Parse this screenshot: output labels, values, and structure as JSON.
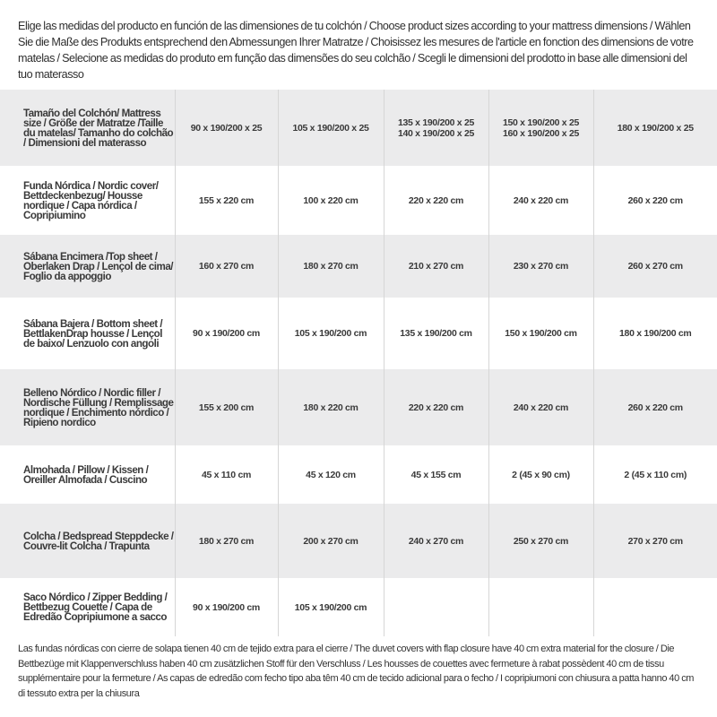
{
  "intro": "Elige las medidas del producto en función de las dimensiones de tu colchón / Choose product sizes according to your mattress dimensions / Wählen Sie die Maße des Produkts entsprechend den Abmessungen Ihrer Matratze / Choisissez les mesures de l'article en fonction des dimensions de votre matelas / Selecione as medidas do produto em função das dimensões do seu colchão / Scegli le dimensioni del prodotto in base alle dimensioni del tuo materasso",
  "table": {
    "rows": [
      {
        "label": "Tamaño del Colchón/ Mattress size / Größe der Matratze /Taille du matelas/ Tamanho do colchão / Dimensioni del materasso",
        "cells": [
          "90 x 190/200 x 25",
          "105 x 190/200 x 25",
          "135 x 190/200 x 25\n140 x 190/200 x 25",
          "150 x 190/200 x 25\n160 x 190/200 x 25",
          "180 x 190/200 x 25"
        ]
      },
      {
        "label": "Funda Nórdica / Nordic cover/ Bettdeckenbezug/ Housse nordique / Capa nórdica / Copripiumino",
        "cells": [
          "155 x 220 cm",
          "100 x 220 cm",
          "220 x 220 cm",
          "240 x 220 cm",
          "260 x 220 cm"
        ]
      },
      {
        "label": "Sábana Encimera /Top sheet / Oberlaken Drap / Lençol de cima/ Foglio da appoggio",
        "cells": [
          "160 x 270 cm",
          "180 x 270 cm",
          "210 x 270 cm",
          "230 x 270 cm",
          "260 x 270 cm"
        ]
      },
      {
        "label": "Sábana Bajera / Bottom sheet / BettlakenDrap housse / Lençol de baixo/ Lenzuolo con angoli",
        "cells": [
          "90 x 190/200 cm",
          "105 x 190/200 cm",
          "135 x 190/200 cm",
          "150 x 190/200 cm",
          "180 x 190/200 cm"
        ]
      },
      {
        "label": "Belleno Nórdico / Nordic filler / Nordische Füllung / Remplissage nordique / Enchimento nórdico / Ripieno nordico",
        "cells": [
          "155 x 200 cm",
          "180 x 220 cm",
          "220 x 220 cm",
          "240 x 220 cm",
          "260 x 220 cm"
        ]
      },
      {
        "label": "Almohada / Pillow / Kissen / Oreiller Almofada / Cuscino",
        "cells": [
          "45 x 110 cm",
          "45 x 120 cm",
          "45 x 155 cm",
          "2 (45 x 90 cm)",
          "2 (45 x 110 cm)"
        ]
      },
      {
        "label": "Colcha / Bedspread Steppdecke / Couvre-lit Colcha / Trapunta",
        "cells": [
          "180 x 270 cm",
          "200 x 270 cm",
          "240 x 270 cm",
          "250 x 270 cm",
          "270 x 270 cm"
        ]
      },
      {
        "label": "Saco Nórdico / Zipper Bedding / Bettbezug Couette / Capa de Edredão Copripiumone a sacco",
        "cells": [
          "90 x 190/200 cm",
          "105 x 190/200 cm",
          "",
          "",
          ""
        ]
      }
    ]
  },
  "note": "Las fundas nórdicas con cierre de solapa tienen 40 cm de tejido extra para el cierre / The duvet covers with flap closure have 40 cm extra material for the closure / Die Bettbezüge mit Klappenverschluss haben 40 cm zusätzlichen Stoff für den Verschluss / Les housses de couettes avec fermeture à rabat possèdent 40 cm de tissu supplémentaire pour la fermeture / As capas de edredão com fecho tipo aba têm 40 cm de tecido adicional para o fecho / I copripiumoni con chiusura a patta hanno 40 cm di tessuto extra per la chiusura"
}
